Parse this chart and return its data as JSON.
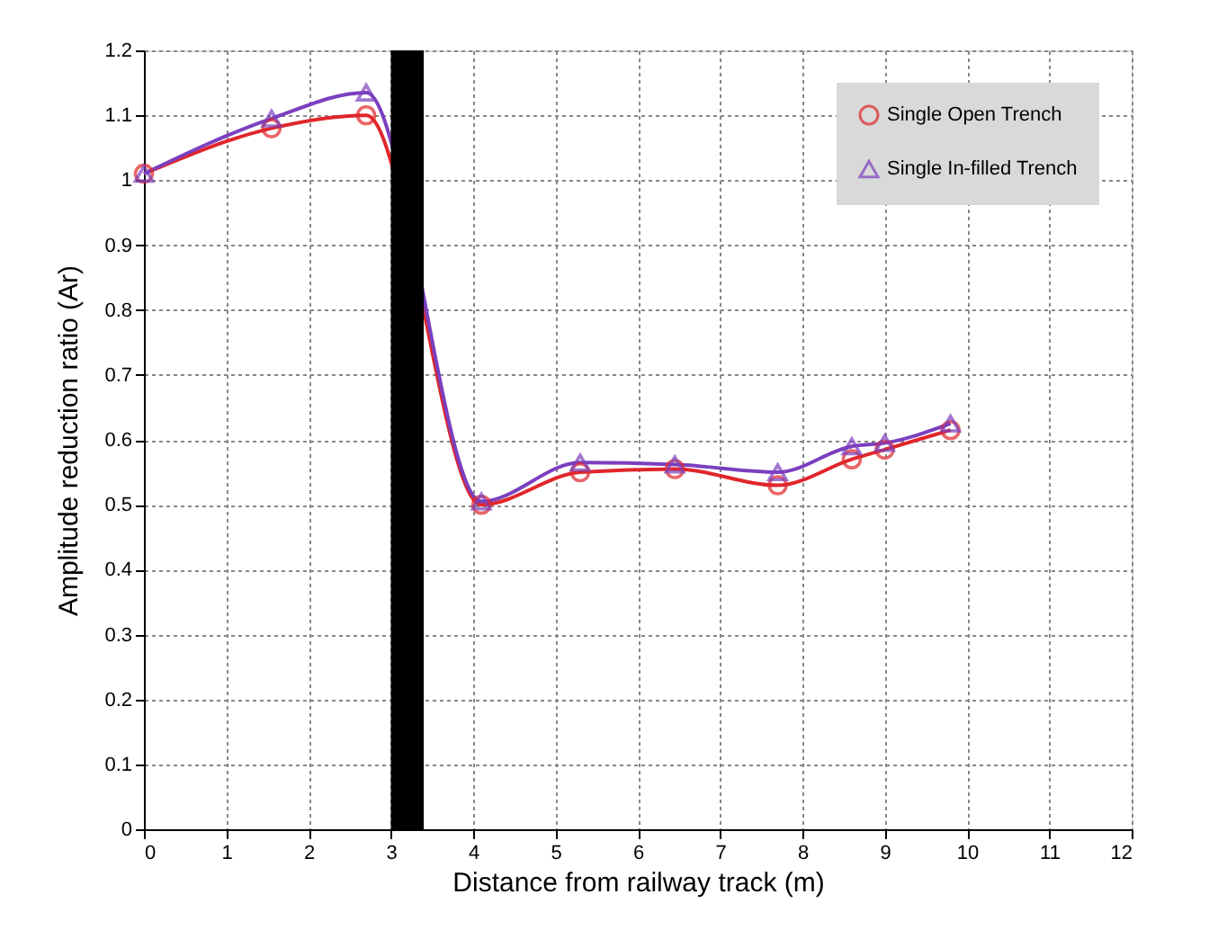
{
  "chart_data": {
    "type": "line",
    "xlabel": "Distance from railway track (m)",
    "ylabel": "Amplitude reduction ratio (Ar)",
    "xlim": [
      0,
      12
    ],
    "xticks": [
      0,
      1,
      2,
      3,
      4,
      5,
      6,
      7,
      8,
      9,
      10,
      11,
      12
    ],
    "ylim": [
      0,
      1.2
    ],
    "yticks": [
      0,
      0.1,
      0.2,
      0.3,
      0.4,
      0.5,
      0.6,
      0.7,
      0.8,
      0.9,
      1,
      1.1,
      1.2
    ],
    "grid": true,
    "legend": "top right",
    "bands": [
      {
        "axis": "x",
        "from": 3.0,
        "to": 3.4,
        "color": "#000000"
      }
    ],
    "series": [
      {
        "name": "Single Open Trench",
        "color": "#e0262b",
        "marker": "circle",
        "x": [
          0,
          1.55,
          2.7,
          4.1,
          5.3,
          6.45,
          7.7,
          8.6,
          9.0,
          9.8
        ],
        "values": [
          1.01,
          1.08,
          1.1,
          0.5,
          0.55,
          0.555,
          0.53,
          0.57,
          0.585,
          0.615
        ]
      },
      {
        "name": "Single In-filled Trench",
        "color": "#7b3fbf",
        "marker": "triangle",
        "x": [
          0,
          1.55,
          2.7,
          4.1,
          5.3,
          6.45,
          7.7,
          8.6,
          9.0,
          9.8
        ],
        "values": [
          1.01,
          1.095,
          1.135,
          0.505,
          0.565,
          0.562,
          0.55,
          0.59,
          0.595,
          0.625
        ]
      }
    ]
  }
}
